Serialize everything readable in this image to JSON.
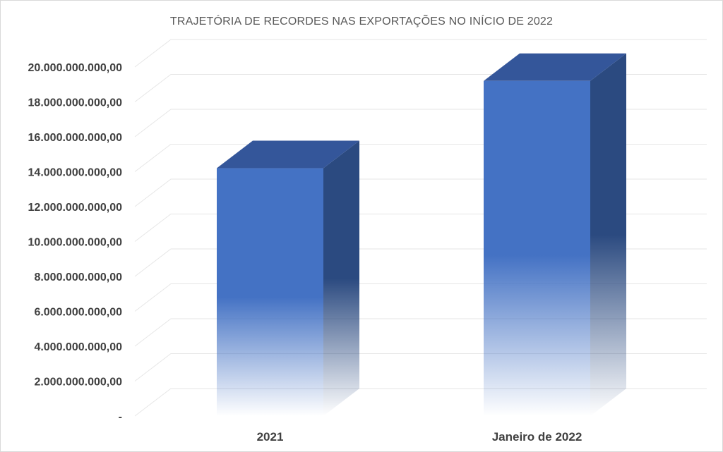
{
  "chart_data": {
    "type": "bar",
    "title": "TRAJETÓRIA DE RECORDES NAS EXPORTAÇÕES NO INÍCIO DE 2022",
    "xlabel": "",
    "ylabel": "",
    "categories": [
      "2021",
      "Janeiro de 2022"
    ],
    "values": [
      14200000000,
      19200000000
    ],
    "ylim": [
      0,
      20000000000
    ],
    "y_ticks": [
      {
        "value": 0,
        "label": "-"
      },
      {
        "value": 2000000000,
        "label": "2.000.000.000,00"
      },
      {
        "value": 4000000000,
        "label": "4.000.000.000,00"
      },
      {
        "value": 6000000000,
        "label": "6.000.000.000,00"
      },
      {
        "value": 8000000000,
        "label": "8.000.000.000,00"
      },
      {
        "value": 10000000000,
        "label": "10.000.000.000,00"
      },
      {
        "value": 12000000000,
        "label": "12.000.000.000,00"
      },
      {
        "value": 14000000000,
        "label": "14.000.000.000,00"
      },
      {
        "value": 16000000000,
        "label": "16.000.000.000,00"
      },
      {
        "value": 18000000000,
        "label": "18.000.000.000,00"
      },
      {
        "value": 20000000000,
        "label": "20.000.000.000,00"
      }
    ],
    "grid": true,
    "legend": "none",
    "style": "3d-column-gradient",
    "colors": {
      "bar_front": "#4472c4",
      "bar_side": "#2b4a80",
      "bar_top": "#34569a",
      "grid": "#e6e6e6",
      "title": "#595959",
      "tick_text": "#404040"
    }
  }
}
